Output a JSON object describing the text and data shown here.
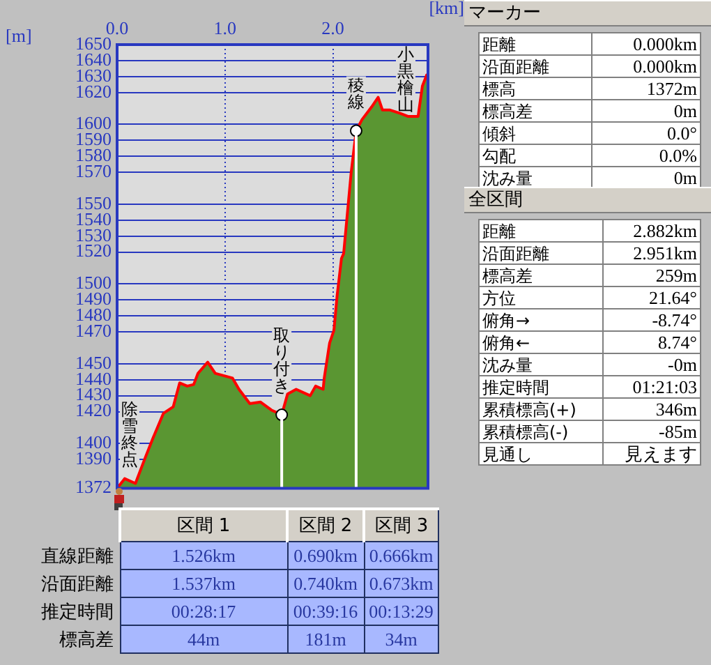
{
  "chart_data": {
    "type": "area",
    "xlabel": "[km]",
    "ylabel": "[m]",
    "xlim": [
      0,
      2.882
    ],
    "xticks": [
      {
        "value": 0,
        "label": "0.0"
      },
      {
        "value": 1,
        "label": "1.0"
      },
      {
        "value": 2,
        "label": "2.0"
      }
    ],
    "ylim": [
      1372,
      1650
    ],
    "yticks": [
      1372,
      1390,
      1400,
      1420,
      1430,
      1440,
      1450,
      1470,
      1480,
      1490,
      1500,
      1520,
      1530,
      1540,
      1550,
      1570,
      1580,
      1590,
      1600,
      1620,
      1630,
      1640,
      1650
    ],
    "grid": true,
    "legend": false,
    "series": [
      {
        "color": "#5a9632",
        "x": [
          0,
          0.07,
          0.17,
          0.26,
          0.33,
          0.43,
          0.52,
          0.58,
          0.65,
          0.71,
          0.75,
          0.84,
          0.91,
          1.07,
          1.13,
          1.23,
          1.33,
          1.43,
          1.526,
          1.58,
          1.66,
          1.79,
          1.84,
          1.91,
          1.92,
          1.97,
          2.01,
          2.04,
          2.08,
          2.1,
          2.17,
          2.216,
          2.27,
          2.36,
          2.42,
          2.46,
          2.53,
          2.62,
          2.7,
          2.79,
          2.83,
          2.87,
          2.882
        ],
        "values": [
          1372,
          1378,
          1375,
          1391,
          1403,
          1419,
          1423,
          1438,
          1436,
          1437,
          1444,
          1451,
          1444,
          1441,
          1434,
          1425,
          1426,
          1421,
          1418,
          1431,
          1434,
          1430,
          1436,
          1434,
          1441,
          1463,
          1471,
          1493,
          1516,
          1519,
          1570,
          1596,
          1603,
          1611,
          1617,
          1609,
          1609,
          1607,
          1605,
          1605,
          1624,
          1631,
          1631
        ]
      },
      {
        "type": "scatter",
        "color": "#ffffff",
        "marker": "circle",
        "x": [
          1.526,
          2.216
        ],
        "values": [
          1418,
          1596
        ]
      }
    ],
    "ref_lines": [
      {
        "axis": "x",
        "value": 1.526,
        "color": "#ffffff"
      },
      {
        "axis": "x",
        "value": 2.216,
        "color": "#ffffff"
      }
    ],
    "annotations": [
      {
        "text": "除雪終点",
        "x": 0,
        "y": 1372
      },
      {
        "text": "取り付き",
        "x": 1.526,
        "y": 1418
      },
      {
        "text": "稜線",
        "x": 2.216,
        "y": 1596
      },
      {
        "text": "小黒檜山",
        "x": 2.882,
        "y": 1631
      },
      "区間 1",
      "区間 2",
      "区間 3",
      "直線距離",
      "沿面距離",
      "推定時間",
      "標高差",
      "1.526km",
      "0.690km",
      "0.666km",
      "1.537km",
      "0.740km",
      "0.673km",
      "00:28:17",
      "00:39:16",
      "00:13:29",
      "44m",
      "181m",
      "34m",
      "マーカー",
      "距離",
      "0.000km",
      "沿面距離",
      "0.000km",
      "標高",
      "1372m",
      "標高差",
      "0m",
      "傾斜",
      "0.0°",
      "勾配",
      "0.0%",
      "沈み量",
      "0m",
      "全区間",
      "距離",
      "2.882km",
      "沿面距離",
      "2.951km",
      "標高差",
      "259m",
      "方位",
      "21.64°",
      "俯角→",
      "-8.74°",
      "俯角←",
      "8.74°",
      "沈み量",
      "-0m",
      "推定時間",
      "01:21:03",
      "累積標高(+)",
      "346m",
      "累積標高(-)",
      "-85m",
      "見通し",
      "見えます"
    ]
  }
}
